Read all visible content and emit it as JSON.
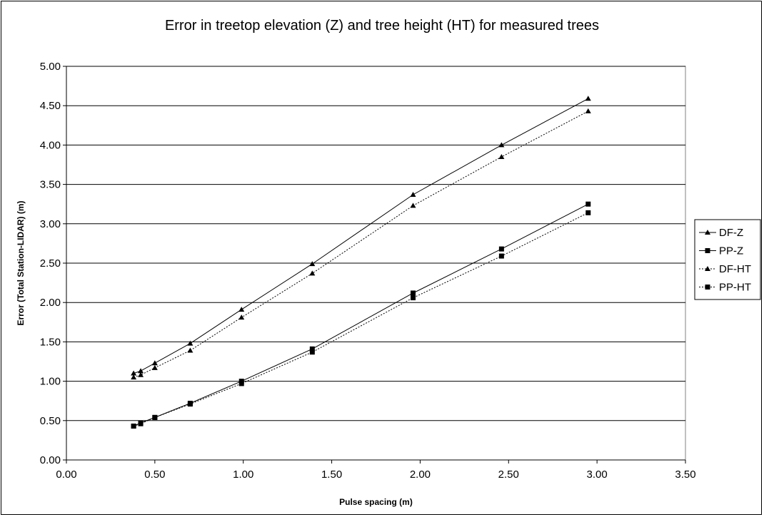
{
  "chart_data": {
    "type": "line",
    "title": "Error in treetop elevation (Z) and tree height (HT) for measured trees",
    "xlabel": "Pulse spacing (m)",
    "ylabel": "Error (Total Station-LIDAR) (m)",
    "xlim": [
      0,
      3.5
    ],
    "ylim": [
      0,
      5
    ],
    "x_ticks": [
      "0.00",
      "0.50",
      "1.00",
      "1.50",
      "2.00",
      "2.50",
      "3.00",
      "3.50"
    ],
    "y_ticks": [
      "0.00",
      "0.50",
      "1.00",
      "1.50",
      "2.00",
      "2.50",
      "3.00",
      "3.50",
      "4.00",
      "4.50",
      "5.00"
    ],
    "grid": "horizontal",
    "legend_position": "right",
    "series": [
      {
        "name": "DF-Z",
        "marker": "triangle",
        "line": "solid",
        "x": [
          0.38,
          0.42,
          0.5,
          0.7,
          0.99,
          1.39,
          1.96,
          2.46,
          2.95
        ],
        "y": [
          1.1,
          1.13,
          1.23,
          1.48,
          1.91,
          2.49,
          3.37,
          4.0,
          4.59
        ]
      },
      {
        "name": "PP-Z",
        "marker": "square",
        "line": "solid",
        "x": [
          0.38,
          0.42,
          0.5,
          0.7,
          0.99,
          1.39,
          1.96,
          2.46,
          2.95
        ],
        "y": [
          0.43,
          0.47,
          0.54,
          0.72,
          1.0,
          1.41,
          2.12,
          2.68,
          3.25
        ]
      },
      {
        "name": "DF-HT",
        "marker": "triangle",
        "line": "dotted",
        "x": [
          0.38,
          0.42,
          0.5,
          0.7,
          0.99,
          1.39,
          1.96,
          2.46,
          2.95
        ],
        "y": [
          1.05,
          1.08,
          1.17,
          1.39,
          1.81,
          2.37,
          3.23,
          3.85,
          4.43
        ]
      },
      {
        "name": "PP-HT",
        "marker": "square",
        "line": "dotted",
        "x": [
          0.38,
          0.42,
          0.5,
          0.7,
          0.99,
          1.39,
          1.96,
          2.46,
          2.95
        ],
        "y": [
          0.43,
          0.46,
          0.54,
          0.71,
          0.97,
          1.37,
          2.06,
          2.59,
          3.14
        ]
      }
    ]
  }
}
